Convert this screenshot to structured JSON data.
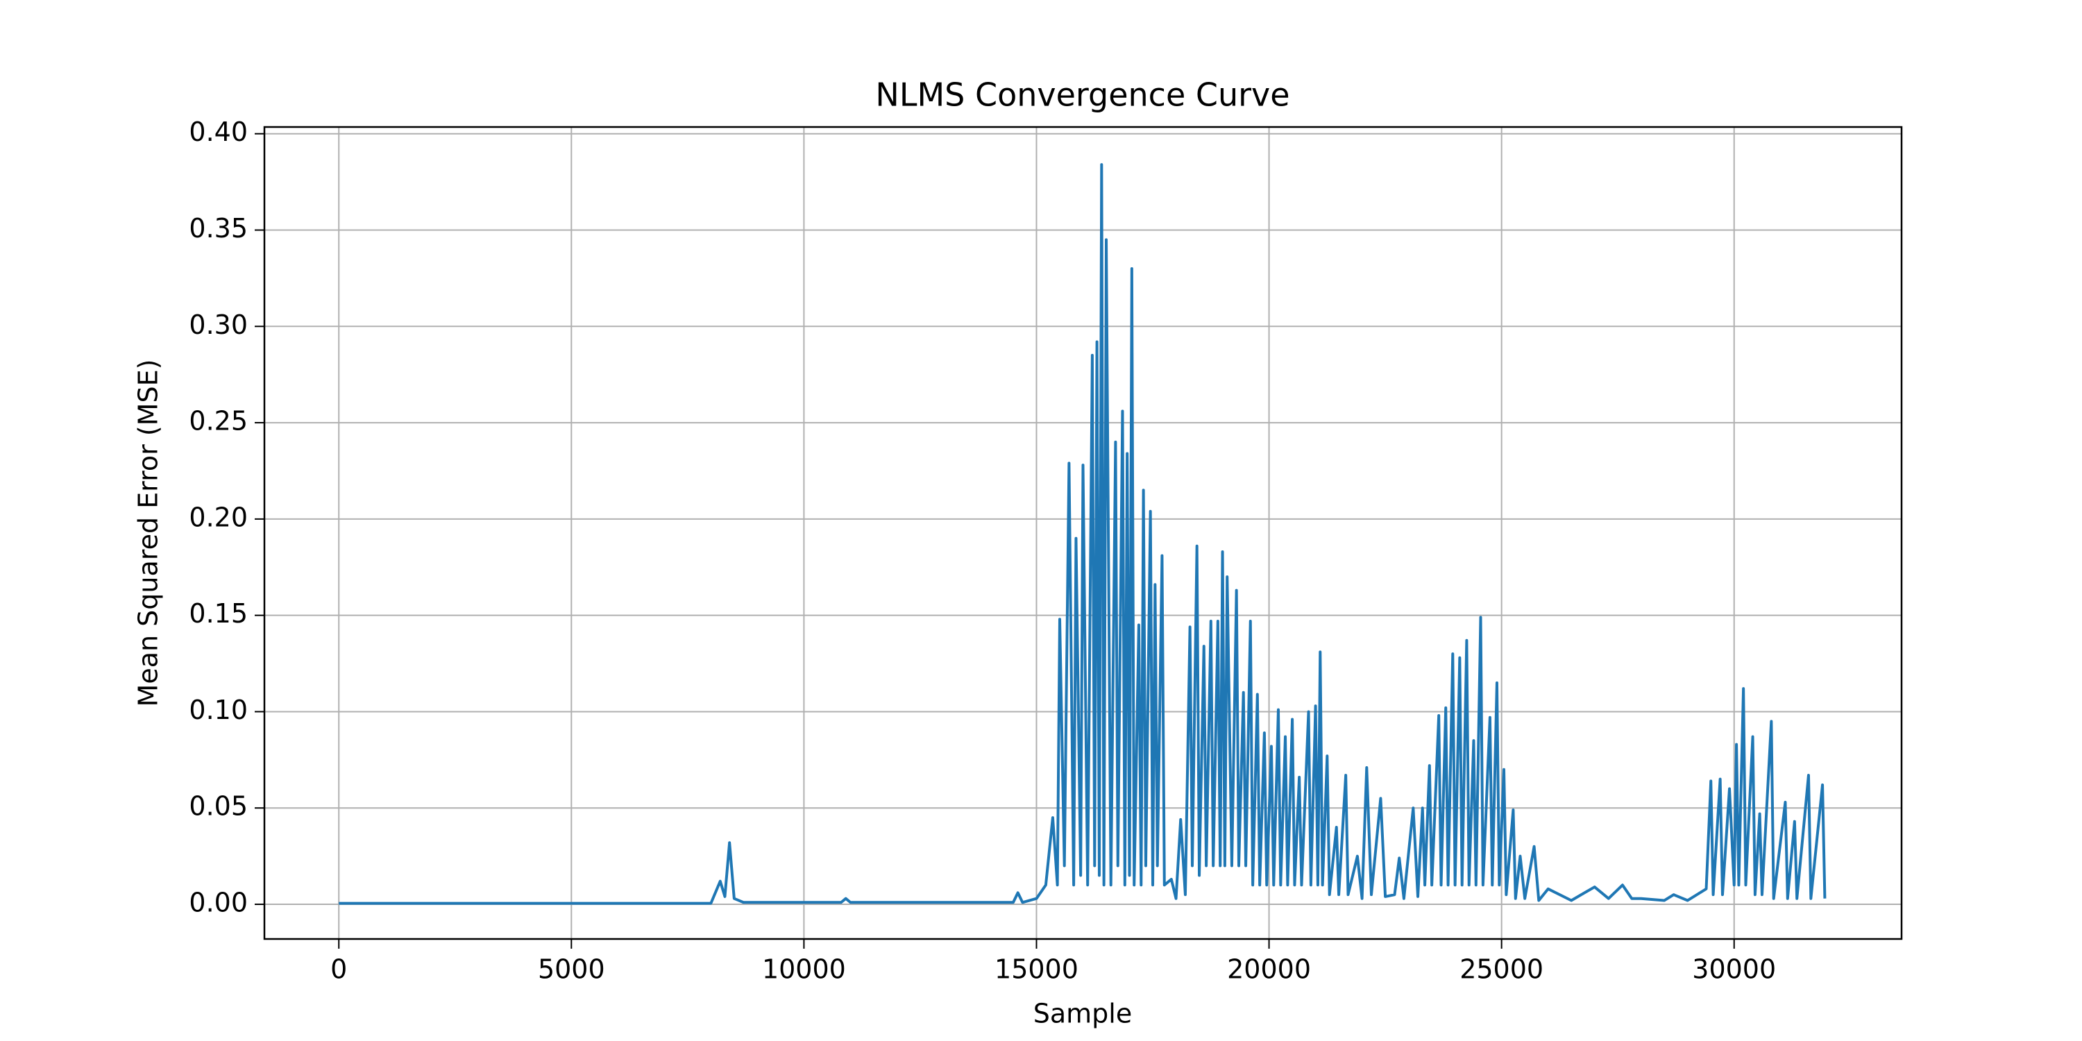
{
  "chart_data": {
    "type": "line",
    "title": "NLMS Convergence Curve",
    "xlabel": "Sample",
    "ylabel": "Mean Squared Error (MSE)",
    "color": "#1f77b4",
    "grid": true,
    "xlim": [
      -1600,
      33600
    ],
    "ylim": [
      -0.018,
      0.4035
    ],
    "xticks": [
      0,
      5000,
      10000,
      15000,
      20000,
      25000,
      30000
    ],
    "yticks": [
      {
        "value": 0,
        "label": "0.00"
      },
      {
        "value": 0.05,
        "label": "0.05"
      },
      {
        "value": 0.1,
        "label": "0.10"
      },
      {
        "value": 0.15,
        "label": "0.15"
      },
      {
        "value": 0.2,
        "label": "0.20"
      },
      {
        "value": 0.25,
        "label": "0.25"
      },
      {
        "value": 0.3,
        "label": "0.30"
      },
      {
        "value": 0.35,
        "label": "0.35"
      },
      {
        "value": 0.4,
        "label": "0.40"
      }
    ],
    "x": [
      0,
      2000,
      4000,
      6000,
      8000,
      8200,
      8300,
      8400,
      8500,
      8700,
      9500,
      10800,
      10900,
      11000,
      13000,
      14500,
      14600,
      14700,
      15000,
      15200,
      15350,
      15450,
      15500,
      15600,
      15700,
      15800,
      15850,
      15950,
      16000,
      16100,
      16200,
      16250,
      16300,
      16350,
      16400,
      16450,
      16500,
      16600,
      16700,
      16750,
      16850,
      16900,
      16950,
      17000,
      17050,
      17100,
      17200,
      17250,
      17300,
      17350,
      17450,
      17500,
      17550,
      17600,
      17700,
      17750,
      17900,
      18000,
      18100,
      18200,
      18300,
      18350,
      18450,
      18500,
      18600,
      18650,
      18750,
      18800,
      18900,
      18950,
      19000,
      19050,
      19100,
      19200,
      19300,
      19350,
      19450,
      19500,
      19600,
      19650,
      19750,
      19800,
      19900,
      19950,
      20050,
      20100,
      20200,
      20250,
      20350,
      20400,
      20500,
      20550,
      20650,
      20700,
      20850,
      20900,
      21000,
      21050,
      21100,
      21150,
      21250,
      21300,
      21450,
      21500,
      21650,
      21700,
      21900,
      22000,
      22100,
      22200,
      22400,
      22500,
      22700,
      22800,
      22900,
      23100,
      23200,
      23300,
      23350,
      23450,
      23500,
      23650,
      23700,
      23800,
      23850,
      23950,
      24000,
      24100,
      24150,
      24250,
      24300,
      24400,
      24450,
      24550,
      24600,
      24750,
      24800,
      24900,
      24950,
      25050,
      25100,
      25250,
      25300,
      25400,
      25500,
      25700,
      25800,
      26000,
      26500,
      27000,
      27300,
      27600,
      27800,
      28000,
      28500,
      28700,
      29000,
      29400,
      29500,
      29550,
      29700,
      29750,
      29900,
      30000,
      30050,
      30100,
      30200,
      30250,
      30400,
      30450,
      30550,
      30600,
      30800,
      30850,
      31100,
      31150,
      31300,
      31350,
      31600,
      31650,
      31900,
      31950
    ],
    "values": [
      0.0005,
      0.0005,
      0.0005,
      0.0005,
      0.0005,
      0.012,
      0.004,
      0.032,
      0.003,
      0.001,
      0.001,
      0.001,
      0.003,
      0.001,
      0.001,
      0.001,
      0.006,
      0.001,
      0.003,
      0.01,
      0.045,
      0.01,
      0.148,
      0.02,
      0.229,
      0.01,
      0.19,
      0.015,
      0.228,
      0.01,
      0.285,
      0.02,
      0.292,
      0.015,
      0.384,
      0.01,
      0.345,
      0.01,
      0.24,
      0.02,
      0.256,
      0.01,
      0.234,
      0.015,
      0.33,
      0.01,
      0.145,
      0.01,
      0.215,
      0.02,
      0.204,
      0.01,
      0.166,
      0.02,
      0.181,
      0.01,
      0.013,
      0.003,
      0.044,
      0.005,
      0.144,
      0.02,
      0.186,
      0.015,
      0.134,
      0.02,
      0.147,
      0.02,
      0.147,
      0.02,
      0.183,
      0.02,
      0.17,
      0.02,
      0.163,
      0.02,
      0.11,
      0.02,
      0.147,
      0.01,
      0.109,
      0.01,
      0.089,
      0.01,
      0.082,
      0.01,
      0.101,
      0.01,
      0.087,
      0.01,
      0.096,
      0.01,
      0.066,
      0.01,
      0.1,
      0.01,
      0.103,
      0.01,
      0.131,
      0.01,
      0.077,
      0.005,
      0.04,
      0.005,
      0.067,
      0.005,
      0.025,
      0.003,
      0.071,
      0.005,
      0.055,
      0.004,
      0.005,
      0.024,
      0.003,
      0.05,
      0.004,
      0.05,
      0.01,
      0.072,
      0.01,
      0.098,
      0.01,
      0.102,
      0.01,
      0.13,
      0.01,
      0.128,
      0.01,
      0.137,
      0.01,
      0.085,
      0.01,
      0.149,
      0.01,
      0.097,
      0.01,
      0.115,
      0.01,
      0.07,
      0.005,
      0.049,
      0.003,
      0.025,
      0.003,
      0.03,
      0.002,
      0.008,
      0.002,
      0.009,
      0.003,
      0.01,
      0.003,
      0.003,
      0.002,
      0.005,
      0.002,
      0.008,
      0.064,
      0.005,
      0.065,
      0.005,
      0.06,
      0.01,
      0.083,
      0.01,
      0.112,
      0.01,
      0.087,
      0.005,
      0.047,
      0.005,
      0.095,
      0.003,
      0.053,
      0.003,
      0.043,
      0.003,
      0.067,
      0.003,
      0.062,
      0.003
    ]
  }
}
